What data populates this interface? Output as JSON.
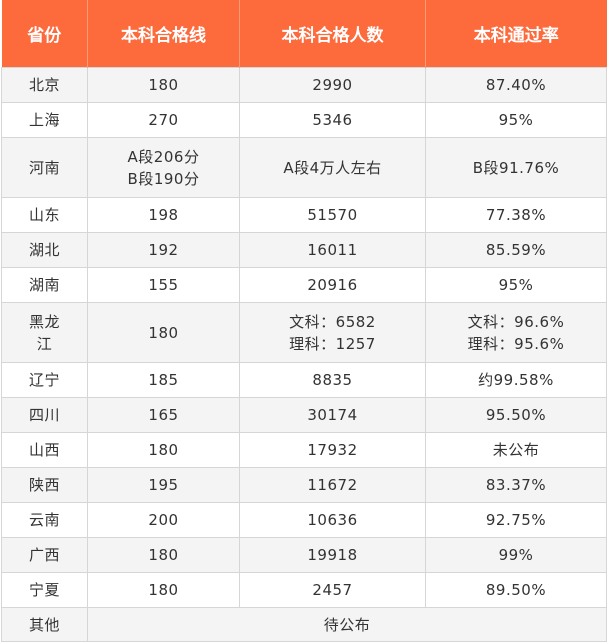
{
  "headers": [
    "省份",
    "本科合格线",
    "本科合格人数",
    "本科通过率"
  ],
  "rows": [
    {
      "province": [
        "北京"
      ],
      "line": [
        "180"
      ],
      "count": [
        "2990"
      ],
      "rate": [
        "87.40%"
      ]
    },
    {
      "province": [
        "上海"
      ],
      "line": [
        "270"
      ],
      "count": [
        "5346"
      ],
      "rate": [
        "95%"
      ]
    },
    {
      "province": [
        "河南"
      ],
      "line": [
        "A段206分",
        "B段190分"
      ],
      "count": [
        "A段4万人左右"
      ],
      "rate": [
        "B段91.76%"
      ]
    },
    {
      "province": [
        "山东"
      ],
      "line": [
        "198"
      ],
      "count": [
        "51570"
      ],
      "rate": [
        "77.38%"
      ]
    },
    {
      "province": [
        "湖北"
      ],
      "line": [
        "192"
      ],
      "count": [
        "16011"
      ],
      "rate": [
        "85.59%"
      ]
    },
    {
      "province": [
        "湖南"
      ],
      "line": [
        "155"
      ],
      "count": [
        "20916"
      ],
      "rate": [
        "95%"
      ]
    },
    {
      "province": [
        "黑龙",
        "江"
      ],
      "line": [
        "180"
      ],
      "count": [
        "文科：6582",
        "理科：1257"
      ],
      "rate": [
        "文科：96.6%",
        "理科：95.6%"
      ]
    },
    {
      "province": [
        "辽宁"
      ],
      "line": [
        "185"
      ],
      "count": [
        "8835"
      ],
      "rate": [
        "约99.58%"
      ]
    },
    {
      "province": [
        "四川"
      ],
      "line": [
        "165"
      ],
      "count": [
        "30174"
      ],
      "rate": [
        "95.50%"
      ]
    },
    {
      "province": [
        "山西"
      ],
      "line": [
        "180"
      ],
      "count": [
        "17932"
      ],
      "rate": [
        "未公布"
      ]
    },
    {
      "province": [
        "陕西"
      ],
      "line": [
        "195"
      ],
      "count": [
        "11672"
      ],
      "rate": [
        "83.37%"
      ]
    },
    {
      "province": [
        "云南"
      ],
      "line": [
        "200"
      ],
      "count": [
        "10636"
      ],
      "rate": [
        "92.75%"
      ]
    },
    {
      "province": [
        "广西"
      ],
      "line": [
        "180"
      ],
      "count": [
        "19918"
      ],
      "rate": [
        "99%"
      ]
    },
    {
      "province": [
        "宁夏"
      ],
      "line": [
        "180"
      ],
      "count": [
        "2457"
      ],
      "rate": [
        "89.50%"
      ]
    }
  ],
  "footer": {
    "province": "其他",
    "note": "待公布"
  },
  "colors": {
    "header_bg": "#fd6a3b",
    "header_text": "#ffffff",
    "stripe": "#f4f4f4",
    "border": "#d6d6d6"
  }
}
